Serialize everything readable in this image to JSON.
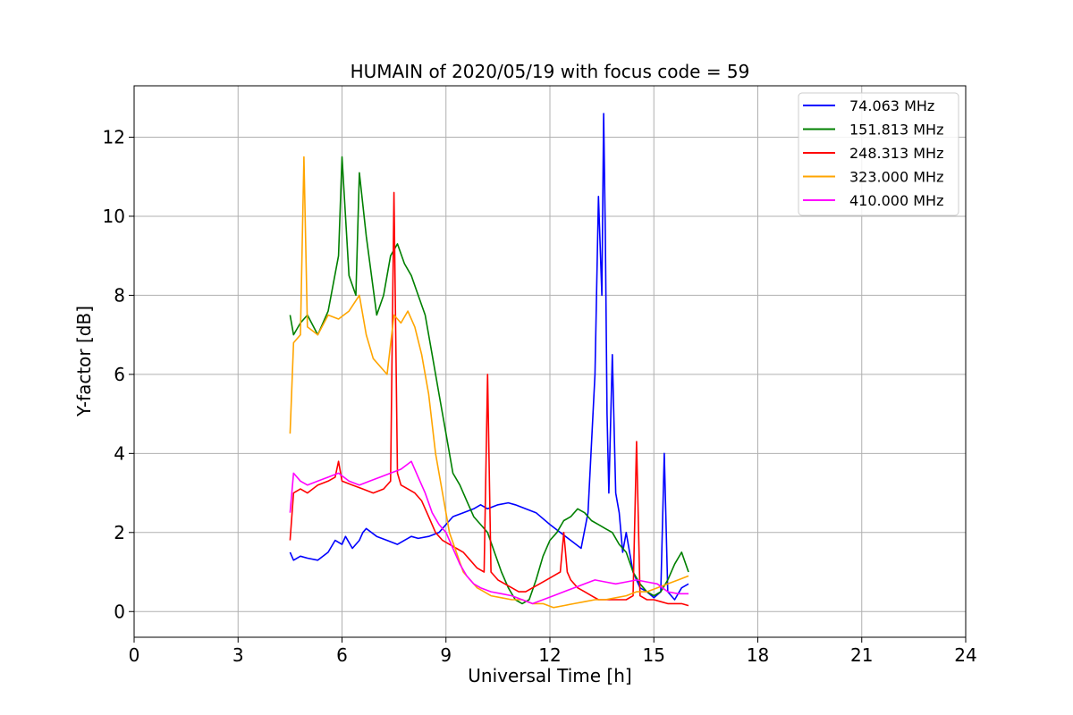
{
  "chart_data": {
    "type": "line",
    "title": "HUMAIN of 2020/05/19 with focus code = 59",
    "xlabel": "Universal Time [h]",
    "ylabel": "Y-factor [dB]",
    "xlim": [
      0,
      24
    ],
    "ylim": [
      -0.65,
      13.3
    ],
    "xticks": [
      0,
      3,
      6,
      9,
      12,
      15,
      18,
      21,
      24
    ],
    "yticks": [
      0,
      2,
      4,
      6,
      8,
      10,
      12
    ],
    "grid": true,
    "legend_position": "top-right",
    "series": [
      {
        "name": "74.063 MHz",
        "color": "#0000ff",
        "x": [
          4.5,
          4.6,
          4.8,
          5.0,
          5.3,
          5.6,
          5.8,
          6.0,
          6.1,
          6.3,
          6.5,
          6.6,
          6.7,
          7.0,
          7.3,
          7.6,
          7.8,
          8.0,
          8.2,
          8.5,
          8.8,
          9.0,
          9.2,
          9.5,
          9.8,
          10.0,
          10.2,
          10.5,
          10.8,
          11.0,
          11.3,
          11.6,
          12.0,
          12.3,
          12.6,
          12.9,
          13.1,
          13.3,
          13.4,
          13.5,
          13.55,
          13.6,
          13.65,
          13.7,
          13.8,
          13.9,
          14.0,
          14.1,
          14.2,
          14.3,
          14.4,
          14.5,
          14.6,
          14.8,
          15.0,
          15.2,
          15.3,
          15.4,
          15.6,
          15.8,
          16.0
        ],
        "y": [
          1.5,
          1.3,
          1.4,
          1.35,
          1.3,
          1.5,
          1.8,
          1.7,
          1.9,
          1.6,
          1.8,
          2.0,
          2.1,
          1.9,
          1.8,
          1.7,
          1.8,
          1.9,
          1.85,
          1.9,
          2.0,
          2.2,
          2.4,
          2.5,
          2.6,
          2.7,
          2.6,
          2.7,
          2.75,
          2.7,
          2.6,
          2.5,
          2.2,
          2.0,
          1.8,
          1.6,
          2.5,
          6.0,
          10.5,
          8.0,
          12.6,
          9.5,
          5.0,
          3.0,
          6.5,
          3.0,
          2.5,
          1.5,
          2.0,
          1.5,
          1.0,
          0.8,
          0.6,
          0.5,
          0.35,
          0.5,
          4.0,
          0.5,
          0.3,
          0.6,
          0.7
        ]
      },
      {
        "name": "151.813 MHz",
        "color": "#008000",
        "x": [
          4.5,
          4.6,
          4.8,
          5.0,
          5.3,
          5.6,
          5.9,
          6.0,
          6.2,
          6.4,
          6.5,
          6.7,
          7.0,
          7.2,
          7.4,
          7.6,
          7.8,
          8.0,
          8.2,
          8.4,
          8.6,
          8.8,
          9.0,
          9.2,
          9.4,
          9.6,
          9.8,
          10.0,
          10.2,
          10.4,
          10.6,
          10.8,
          11.0,
          11.2,
          11.4,
          11.6,
          11.8,
          12.0,
          12.2,
          12.4,
          12.6,
          12.8,
          13.0,
          13.2,
          13.4,
          13.6,
          13.8,
          14.0,
          14.2,
          14.4,
          14.6,
          14.8,
          15.0,
          15.2,
          15.4,
          15.6,
          15.8,
          16.0
        ],
        "y": [
          7.5,
          7.0,
          7.3,
          7.5,
          7.0,
          7.6,
          9.0,
          11.5,
          8.5,
          8.0,
          11.1,
          9.5,
          7.5,
          8.0,
          9.0,
          9.3,
          8.8,
          8.5,
          8.0,
          7.5,
          6.5,
          5.5,
          4.5,
          3.5,
          3.2,
          2.8,
          2.4,
          2.2,
          2.0,
          1.5,
          1.0,
          0.6,
          0.3,
          0.2,
          0.3,
          0.8,
          1.4,
          1.8,
          2.0,
          2.3,
          2.4,
          2.6,
          2.5,
          2.3,
          2.2,
          2.1,
          2.0,
          1.7,
          1.5,
          1.0,
          0.7,
          0.5,
          0.4,
          0.5,
          0.8,
          1.2,
          1.5,
          1.0
        ]
      },
      {
        "name": "248.313 MHz",
        "color": "#ff0000",
        "x": [
          4.5,
          4.6,
          4.8,
          5.0,
          5.3,
          5.6,
          5.8,
          5.9,
          6.0,
          6.3,
          6.6,
          6.9,
          7.2,
          7.4,
          7.5,
          7.6,
          7.7,
          7.9,
          8.1,
          8.3,
          8.5,
          8.7,
          8.9,
          9.1,
          9.3,
          9.5,
          9.7,
          9.9,
          10.1,
          10.2,
          10.3,
          10.5,
          10.7,
          10.9,
          11.1,
          11.3,
          11.5,
          11.7,
          11.9,
          12.1,
          12.3,
          12.4,
          12.5,
          12.6,
          12.8,
          13.0,
          13.2,
          13.4,
          13.6,
          13.8,
          14.0,
          14.2,
          14.4,
          14.5,
          14.6,
          14.8,
          15.0,
          15.2,
          15.4,
          15.6,
          15.8,
          16.0
        ],
        "y": [
          1.8,
          3.0,
          3.1,
          3.0,
          3.2,
          3.3,
          3.4,
          3.8,
          3.3,
          3.2,
          3.1,
          3.0,
          3.1,
          3.3,
          10.6,
          3.5,
          3.2,
          3.1,
          3.0,
          2.8,
          2.4,
          2.0,
          1.8,
          1.7,
          1.6,
          1.5,
          1.3,
          1.1,
          1.0,
          6.0,
          1.0,
          0.8,
          0.7,
          0.6,
          0.5,
          0.5,
          0.6,
          0.7,
          0.8,
          0.9,
          1.0,
          2.0,
          1.0,
          0.8,
          0.6,
          0.5,
          0.4,
          0.3,
          0.3,
          0.3,
          0.3,
          0.3,
          0.4,
          4.3,
          0.4,
          0.3,
          0.3,
          0.25,
          0.2,
          0.2,
          0.2,
          0.15
        ]
      },
      {
        "name": "323.000 MHz",
        "color": "#ffa500",
        "x": [
          4.5,
          4.6,
          4.8,
          4.9,
          5.0,
          5.3,
          5.6,
          5.9,
          6.2,
          6.5,
          6.7,
          6.9,
          7.1,
          7.3,
          7.5,
          7.7,
          7.9,
          8.1,
          8.3,
          8.5,
          8.7,
          8.9,
          9.1,
          9.3,
          9.5,
          9.7,
          9.9,
          10.1,
          10.3,
          10.6,
          10.9,
          11.2,
          11.5,
          11.8,
          12.1,
          12.4,
          12.7,
          13.0,
          13.3,
          13.6,
          13.9,
          14.2,
          14.5,
          14.8,
          15.1,
          15.4,
          15.7,
          16.0
        ],
        "y": [
          4.5,
          6.8,
          7.0,
          11.5,
          7.2,
          7.0,
          7.5,
          7.4,
          7.6,
          8.0,
          7.0,
          6.4,
          6.2,
          6.0,
          7.5,
          7.3,
          7.6,
          7.2,
          6.5,
          5.5,
          4.0,
          3.0,
          2.0,
          1.5,
          1.0,
          0.8,
          0.6,
          0.5,
          0.4,
          0.35,
          0.3,
          0.3,
          0.2,
          0.2,
          0.1,
          0.15,
          0.2,
          0.25,
          0.3,
          0.3,
          0.35,
          0.4,
          0.5,
          0.5,
          0.6,
          0.7,
          0.8,
          0.9
        ]
      },
      {
        "name": "410.000 MHz",
        "color": "#ff00ff",
        "x": [
          4.5,
          4.6,
          4.8,
          5.0,
          5.3,
          5.6,
          5.9,
          6.2,
          6.5,
          6.8,
          7.1,
          7.4,
          7.7,
          8.0,
          8.2,
          8.4,
          8.6,
          8.8,
          9.0,
          9.2,
          9.4,
          9.6,
          9.8,
          10.0,
          10.3,
          10.6,
          10.9,
          11.2,
          11.5,
          11.8,
          12.1,
          12.4,
          12.7,
          13.0,
          13.3,
          13.6,
          13.9,
          14.2,
          14.5,
          14.8,
          15.1,
          15.4,
          15.7,
          16.0
        ],
        "y": [
          2.5,
          3.5,
          3.3,
          3.2,
          3.3,
          3.4,
          3.5,
          3.3,
          3.2,
          3.3,
          3.4,
          3.5,
          3.6,
          3.8,
          3.4,
          3.0,
          2.5,
          2.2,
          2.0,
          1.6,
          1.2,
          0.9,
          0.7,
          0.6,
          0.5,
          0.45,
          0.4,
          0.3,
          0.2,
          0.3,
          0.4,
          0.5,
          0.6,
          0.7,
          0.8,
          0.75,
          0.7,
          0.75,
          0.8,
          0.75,
          0.7,
          0.5,
          0.45,
          0.45
        ]
      }
    ]
  }
}
